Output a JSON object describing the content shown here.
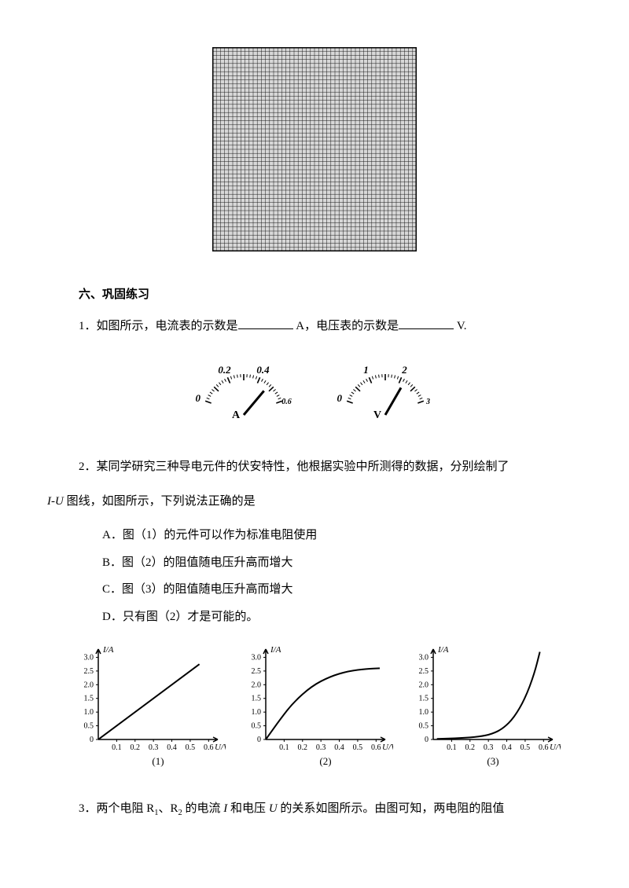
{
  "grid": {
    "size": 260,
    "cells": 50,
    "border_color": "#000000",
    "line_color": "#1a1a1a",
    "background": "#d8d8d8"
  },
  "section_title": "六、巩固练习",
  "q1": {
    "prefix": "1．如图所示，电流表的示数是",
    "unit1_after": " A，电压表的示数是",
    "unit2_after": " V.",
    "ammeter": {
      "ticks_major": [
        "0",
        "0.2",
        "0.4"
      ],
      "tick_small": "0.6",
      "label": "A",
      "needle_angle_deg": 40
    },
    "voltmeter": {
      "ticks_major": [
        "0",
        "1",
        "2"
      ],
      "tick_small": "3",
      "label": "V",
      "needle_angle_deg": 30
    }
  },
  "q2": {
    "text_line1": "2．某同学研究三种导电元件的伏安特性，他根据实验中所测得的数据，分别绘制了",
    "text_line2_prefix": "I-U",
    "text_line2_rest": " 图线，如图所示，下列说法正确的是",
    "options": {
      "A": "A．图（1）的元件可以作为标准电阻使用",
      "B": "B．图（2）的阻值随电压升高而增大",
      "C": "C．图（3）的阻值随电压升高而增大",
      "D": "D．只有图（2）才是可能的。"
    },
    "charts": {
      "y_label": "I/A",
      "x_label": "U/V",
      "y_ticks": [
        0,
        0.5,
        1.0,
        1.5,
        2.0,
        2.5,
        3.0
      ],
      "x_ticks": [
        0.1,
        0.2,
        0.3,
        0.4,
        0.5,
        0.6
      ],
      "xlim": [
        0,
        0.65
      ],
      "ylim": [
        0,
        3.3
      ],
      "axis_color": "#000000",
      "line_color": "#000000",
      "line_width": 2,
      "font_size": 10,
      "chart1": {
        "caption": "(1)",
        "type": "line",
        "points": [
          [
            0,
            0
          ],
          [
            0.55,
            2.75
          ]
        ]
      },
      "chart2": {
        "caption": "(2)",
        "type": "curve",
        "points": [
          [
            0,
            0
          ],
          [
            0.08,
            0.75
          ],
          [
            0.15,
            1.35
          ],
          [
            0.25,
            1.95
          ],
          [
            0.35,
            2.3
          ],
          [
            0.45,
            2.5
          ],
          [
            0.55,
            2.58
          ],
          [
            0.62,
            2.6
          ]
        ]
      },
      "chart3": {
        "caption": "(3)",
        "type": "curve",
        "points": [
          [
            0.02,
            0.02
          ],
          [
            0.15,
            0.05
          ],
          [
            0.25,
            0.1
          ],
          [
            0.32,
            0.2
          ],
          [
            0.38,
            0.4
          ],
          [
            0.44,
            0.8
          ],
          [
            0.5,
            1.5
          ],
          [
            0.55,
            2.4
          ],
          [
            0.58,
            3.2
          ]
        ]
      }
    }
  },
  "q3": {
    "text_prefix": "3．两个电阻 R",
    "sub1": "1",
    "mid1": "、R",
    "sub2": "2",
    "mid2": " 的电流 ",
    "i_sym": "I",
    "mid3": " 和电压 ",
    "u_sym": "U",
    "rest": " 的关系如图所示。由图可知，两电阻的阻值"
  }
}
